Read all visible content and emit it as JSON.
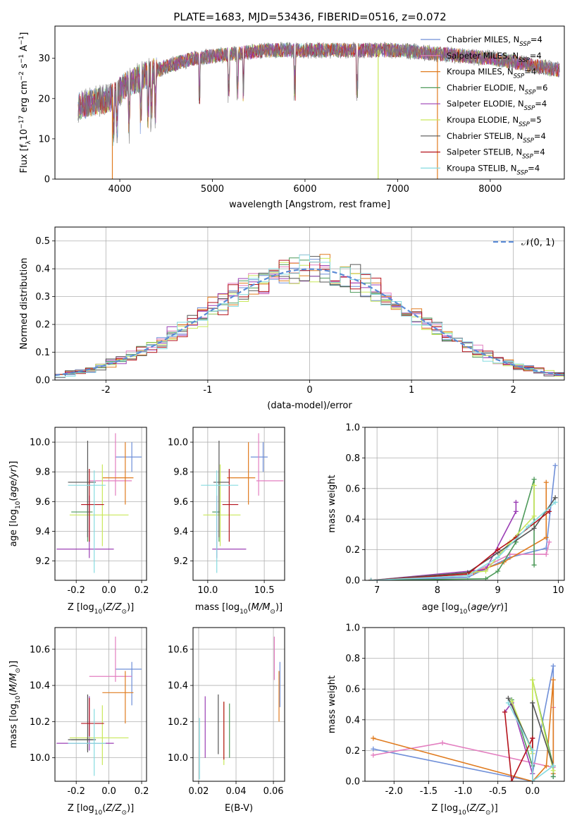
{
  "title": "PLATE=1683, MJD=53436, FIBERID=0516, z=0.072",
  "colors": {
    "chabrier_miles": "#6f8fd8",
    "salpeter_miles": "#e37fc0",
    "kroupa_miles": "#e07b1f",
    "chabrier_elodie": "#4e9a5a",
    "salpeter_elodie": "#9b3fb5",
    "kroupa_elodie": "#c9e85a",
    "chabrier_stelib": "#555555",
    "salpeter_stelib": "#b5121b",
    "kroupa_stelib": "#86dbe0",
    "normal_curve": "#5b8bd6"
  },
  "models": [
    {
      "name": "Chabrier MILES",
      "nssp": "4",
      "color": "#6f8fd8"
    },
    {
      "name": "Salpeter MILES",
      "nssp": "4",
      "color": "#e37fc0"
    },
    {
      "name": "Kroupa MILES",
      "nssp": "4",
      "color": "#e07b1f"
    },
    {
      "name": "Chabrier ELODIE",
      "nssp": "6",
      "color": "#4e9a5a"
    },
    {
      "name": "Salpeter ELODIE",
      "nssp": "4",
      "color": "#9b3fb5"
    },
    {
      "name": "Kroupa ELODIE",
      "nssp": "5",
      "color": "#c9e85a"
    },
    {
      "name": "Chabrier STELIB",
      "nssp": "4",
      "color": "#555555"
    },
    {
      "name": "Salpeter STELIB",
      "nssp": "4",
      "color": "#b5121b"
    },
    {
      "name": "Kroupa STELIB",
      "nssp": "4",
      "color": "#86dbe0"
    }
  ],
  "chart_data": [
    {
      "id": "spectrum",
      "type": "line",
      "xlabel": "wavelength [Angstrom, rest frame]",
      "ylabel": "Flux [f_λ10^-17 erg cm^-2 s^-1 A^-1]",
      "xlim": [
        3300,
        8800
      ],
      "ylim": [
        0,
        38
      ],
      "xticks": [
        4000,
        5000,
        6000,
        7000,
        8000
      ],
      "yticks": [
        0,
        10,
        20,
        30
      ],
      "continuum": [
        [
          3550,
          18
        ],
        [
          3700,
          19
        ],
        [
          3900,
          20
        ],
        [
          4000,
          22
        ],
        [
          4100,
          24
        ],
        [
          4300,
          26
        ],
        [
          4500,
          28
        ],
        [
          4800,
          30
        ],
        [
          5200,
          31
        ],
        [
          5600,
          32
        ],
        [
          6000,
          32
        ],
        [
          6500,
          32
        ],
        [
          7000,
          32
        ],
        [
          7500,
          31
        ],
        [
          8000,
          30
        ],
        [
          8400,
          28.5
        ],
        [
          8750,
          27
        ]
      ],
      "drop_lines": [
        3920,
        6790,
        7430
      ],
      "legend": "upper right"
    },
    {
      "id": "residuals",
      "type": "histogram",
      "xlabel": "(data-model)/error",
      "ylabel": "Normed distribution",
      "xlim": [
        -2.5,
        2.5
      ],
      "ylim": [
        0,
        0.55
      ],
      "xticks": [
        -2,
        -1,
        0,
        1,
        2
      ],
      "yticks": [
        0.0,
        0.1,
        0.2,
        0.3,
        0.4,
        0.5
      ],
      "bin_width": 0.1,
      "reference_label": "𝒩(0, 1)",
      "grid": true
    },
    {
      "id": "age_vs_Z",
      "type": "errorbar",
      "xlabel": "Z [log10(Z/Z⊙)]",
      "ylabel": "age  [log10(age/yr)]",
      "xlim": [
        -0.33,
        0.23
      ],
      "ylim": [
        9.07,
        10.1
      ],
      "xticks": [
        -0.2,
        0.0,
        0.2
      ],
      "yticks": [
        9.2,
        9.4,
        9.6,
        9.8,
        10.0
      ],
      "points": [
        {
          "x": 0.14,
          "xerr": [
            0.1,
            0.06
          ],
          "y": 9.9,
          "yerr": [
            0.1,
            0.1
          ],
          "model": 0
        },
        {
          "x": 0.04,
          "xerr": [
            0.16,
            0.1
          ],
          "y": 9.74,
          "yerr": [
            0.1,
            0.32
          ],
          "model": 1
        },
        {
          "x": 0.1,
          "xerr": [
            0.14,
            0.05
          ],
          "y": 9.76,
          "yerr": [
            0.18,
            0.24
          ],
          "model": 2
        },
        {
          "x": -0.13,
          "xerr": [
            0.1,
            0.03
          ],
          "y": 9.53,
          "yerr": [
            0.2,
            0.28
          ],
          "model": 3
        },
        {
          "x": -0.12,
          "xerr": [
            0.2,
            0.15
          ],
          "y": 9.28,
          "yerr": [
            0.06,
            0.36
          ],
          "model": 4
        },
        {
          "x": -0.04,
          "xerr": [
            0.2,
            0.16
          ],
          "y": 9.51,
          "yerr": [
            0.21,
            0.34
          ],
          "model": 5
        },
        {
          "x": -0.13,
          "xerr": [
            0.12,
            0.05
          ],
          "y": 9.73,
          "yerr": [
            0.37,
            0.28
          ],
          "model": 6
        },
        {
          "x": -0.12,
          "xerr": [
            0.05,
            0.09
          ],
          "y": 9.58,
          "yerr": [
            0.25,
            0.24
          ],
          "model": 7
        },
        {
          "x": -0.09,
          "xerr": [
            0.16,
            0.07
          ],
          "y": 9.71,
          "yerr": [
            0.59,
            0.1
          ],
          "model": 8
        }
      ]
    },
    {
      "id": "age_vs_mass",
      "type": "errorbar",
      "xlabel": "mass [log10(M/M⊙)]",
      "ylabel": "",
      "xlim": [
        9.87,
        10.68
      ],
      "ylim": [
        9.07,
        10.1
      ],
      "xticks": [
        10.0,
        10.5
      ],
      "yticks": [
        9.2,
        9.4,
        9.6,
        9.8,
        10.0
      ],
      "points": [
        {
          "x": 10.49,
          "xerr": [
            0.11,
            0.04
          ],
          "y": 9.9,
          "yerr": [
            0.1,
            0.1
          ],
          "model": 0
        },
        {
          "x": 10.45,
          "xerr": [
            0.02,
            0.22
          ],
          "y": 9.74,
          "yerr": [
            0.1,
            0.32
          ],
          "model": 1
        },
        {
          "x": 10.36,
          "xerr": [
            0.19,
            0.06
          ],
          "y": 9.76,
          "yerr": [
            0.18,
            0.24
          ],
          "model": 2
        },
        {
          "x": 10.1,
          "xerr": [
            0.06,
            0.01
          ],
          "y": 9.53,
          "yerr": [
            0.2,
            0.28
          ],
          "model": 3
        },
        {
          "x": 10.08,
          "xerr": [
            0.04,
            0.26
          ],
          "y": 9.28,
          "yerr": [
            0.06,
            0.36
          ],
          "model": 4
        },
        {
          "x": 10.11,
          "xerr": [
            0.15,
            0.18
          ],
          "y": 9.51,
          "yerr": [
            0.21,
            0.34
          ],
          "model": 5
        },
        {
          "x": 10.1,
          "xerr": [
            0.05,
            0.09
          ],
          "y": 9.73,
          "yerr": [
            0.37,
            0.28
          ],
          "model": 6
        },
        {
          "x": 10.19,
          "xerr": [
            0.06,
            0.08
          ],
          "y": 9.58,
          "yerr": [
            0.25,
            0.24
          ],
          "model": 7
        },
        {
          "x": 10.08,
          "xerr": [
            0.14,
            0.19
          ],
          "y": 9.71,
          "yerr": [
            0.59,
            0.1
          ],
          "model": 8
        }
      ]
    },
    {
      "id": "weight_vs_age",
      "type": "line",
      "xlabel": "age  [log10(age/yr)]",
      "ylabel": "mass weight",
      "xlim": [
        6.8,
        10.1
      ],
      "ylim": [
        0,
        1
      ],
      "xticks": [
        7,
        8,
        9,
        10
      ],
      "yticks": [
        0.0,
        0.2,
        0.4,
        0.6,
        0.8,
        1.0
      ],
      "series": [
        {
          "model": 0,
          "x": [
            6.9,
            8.5,
            9.2,
            9.8,
            9.95
          ],
          "y": [
            0.0,
            0.02,
            0.15,
            0.21,
            0.75
          ]
        },
        {
          "model": 1,
          "x": [
            6.9,
            8.5,
            9.2,
            9.8,
            9.85
          ],
          "y": [
            0.0,
            0.03,
            0.17,
            0.17,
            0.25
          ]
        },
        {
          "model": 2,
          "x": [
            6.9,
            8.6,
            9.1,
            9.8,
            9.8
          ],
          "y": [
            0.0,
            0.05,
            0.12,
            0.28,
            0.64
          ]
        },
        {
          "model": 3,
          "x": [
            6.9,
            8.8,
            9.0,
            9.3,
            9.6,
            9.6
          ],
          "y": [
            0.0,
            0.01,
            0.06,
            0.25,
            0.66,
            0.1
          ]
        },
        {
          "model": 4,
          "x": [
            6.9,
            8.8,
            9.3,
            9.3
          ],
          "y": [
            0.0,
            0.07,
            0.45,
            0.51
          ]
        },
        {
          "model": 5,
          "x": [
            6.9,
            8.8,
            9.2,
            9.6,
            9.6
          ],
          "y": [
            0.0,
            0.06,
            0.25,
            0.42,
            0.62
          ]
        },
        {
          "model": 6,
          "x": [
            6.9,
            8.5,
            9.0,
            9.6,
            9.95
          ],
          "y": [
            0.0,
            0.05,
            0.18,
            0.34,
            0.54
          ]
        },
        {
          "model": 7,
          "x": [
            6.9,
            8.5,
            9.0,
            9.3,
            9.85
          ],
          "y": [
            0.0,
            0.04,
            0.2,
            0.28,
            0.45
          ]
        },
        {
          "model": 8,
          "x": [
            6.9,
            8.5,
            9.0,
            9.5,
            9.95
          ],
          "y": [
            0.0,
            0.03,
            0.15,
            0.35,
            0.51
          ]
        }
      ]
    },
    {
      "id": "mass_vs_Z",
      "type": "errorbar",
      "xlabel": "Z [log10(Z/Z⊙)]",
      "ylabel": "mass [log10(M/M⊙)]",
      "xlim": [
        -0.33,
        0.23
      ],
      "ylim": [
        9.87,
        10.72
      ],
      "xticks": [
        -0.2,
        0.0,
        0.2
      ],
      "yticks": [
        10.0,
        10.2,
        10.4,
        10.6
      ],
      "points": [
        {
          "x": 0.14,
          "xerr": [
            0.1,
            0.06
          ],
          "y": 10.49,
          "yerr": [
            0.2,
            0.04
          ],
          "model": 0
        },
        {
          "x": 0.04,
          "xerr": [
            0.16,
            0.1
          ],
          "y": 10.45,
          "yerr": [
            0.03,
            0.22
          ],
          "model": 1
        },
        {
          "x": 0.1,
          "xerr": [
            0.14,
            0.05
          ],
          "y": 10.36,
          "yerr": [
            0.17,
            0.12
          ],
          "model": 2
        },
        {
          "x": -0.13,
          "xerr": [
            0.1,
            0.03
          ],
          "y": 10.1,
          "yerr": [
            0.06,
            0.01
          ],
          "model": 3
        },
        {
          "x": -0.12,
          "xerr": [
            0.2,
            0.15
          ],
          "y": 10.08,
          "yerr": [
            0.04,
            0.26
          ],
          "model": 4
        },
        {
          "x": -0.04,
          "xerr": [
            0.2,
            0.16
          ],
          "y": 10.11,
          "yerr": [
            0.15,
            0.18
          ],
          "model": 5
        },
        {
          "x": -0.13,
          "xerr": [
            0.12,
            0.05
          ],
          "y": 10.1,
          "yerr": [
            0.07,
            0.25
          ],
          "model": 6
        },
        {
          "x": -0.12,
          "xerr": [
            0.05,
            0.09
          ],
          "y": 10.19,
          "yerr": [
            0.07,
            0.14
          ],
          "model": 7
        },
        {
          "x": -0.09,
          "xerr": [
            0.16,
            0.07
          ],
          "y": 10.08,
          "yerr": [
            0.18,
            0.19
          ],
          "model": 8
        }
      ]
    },
    {
      "id": "mass_vs_ebv",
      "type": "errorbar",
      "xlabel": "E(B-V)",
      "ylabel": "",
      "xlim": [
        0.017,
        0.066
      ],
      "ylim": [
        9.87,
        10.72
      ],
      "xticks": [
        0.02,
        0.04,
        0.06
      ],
      "yticks": [
        10.0,
        10.2,
        10.4,
        10.6
      ],
      "points": [
        {
          "x": 0.0635,
          "y": 10.49,
          "yerr": [
            0.21,
            0.04
          ],
          "model": 0
        },
        {
          "x": 0.0605,
          "y": 10.55,
          "yerr": [
            0.12,
            0.12
          ],
          "model": 1
        },
        {
          "x": 0.063,
          "y": 10.34,
          "yerr": [
            0.14,
            0.14
          ],
          "model": 2
        },
        {
          "x": 0.0365,
          "y": 10.15,
          "yerr": [
            0.15,
            0.15
          ],
          "model": 3
        },
        {
          "x": 0.0235,
          "y": 10.17,
          "yerr": [
            0.17,
            0.17
          ],
          "model": 4
        },
        {
          "x": 0.0335,
          "y": 10.13,
          "yerr": [
            0.17,
            0.18
          ],
          "model": 5
        },
        {
          "x": 0.0305,
          "y": 10.18,
          "yerr": [
            0.16,
            0.17
          ],
          "model": 6
        },
        {
          "x": 0.0335,
          "y": 10.15,
          "yerr": [
            0.16,
            0.16
          ],
          "model": 7
        },
        {
          "x": 0.0205,
          "y": 10.05,
          "yerr": [
            0.17,
            0.17
          ],
          "model": 8
        }
      ]
    },
    {
      "id": "weight_vs_Z",
      "type": "line",
      "xlabel": "Z [log10(Z/Z⊙)]",
      "ylabel": "mass weight",
      "xlim": [
        -2.42,
        0.46
      ],
      "ylim": [
        0,
        1
      ],
      "xticks": [
        -2.0,
        -1.5,
        -1.0,
        -0.5,
        0.0
      ],
      "yticks": [
        0.0,
        0.2,
        0.4,
        0.6,
        0.8,
        1.0
      ],
      "series": [
        {
          "model": 0,
          "x": [
            -2.3,
            0.0,
            0.0,
            0.3,
            0.3
          ],
          "y": [
            0.21,
            0.0,
            0.05,
            0.75,
            0.03
          ]
        },
        {
          "model": 1,
          "x": [
            -2.3,
            -1.3,
            0.3,
            0.3
          ],
          "y": [
            0.17,
            0.25,
            0.09,
            0.48
          ]
        },
        {
          "model": 2,
          "x": [
            -2.3,
            0.0,
            0.2,
            0.3,
            0.3
          ],
          "y": [
            0.28,
            0.0,
            0.1,
            0.66,
            0.05
          ]
        },
        {
          "model": 3,
          "x": [
            -0.3,
            0.0,
            0.0,
            0.3,
            0.3
          ],
          "y": [
            0.53,
            0.1,
            0.66,
            0.1,
            0.03
          ]
        },
        {
          "model": 4,
          "x": [
            -0.4,
            -0.3,
            0.0,
            0.0,
            0.0
          ],
          "y": [
            0.45,
            0.51,
            0.05,
            0.28,
            0.0
          ]
        },
        {
          "model": 5,
          "x": [
            -0.3,
            0.0,
            0.0,
            0.3
          ],
          "y": [
            0.52,
            0.18,
            0.66,
            0.07
          ]
        },
        {
          "model": 6,
          "x": [
            -0.35,
            0.0,
            0.0,
            0.3
          ],
          "y": [
            0.54,
            0.2,
            0.51,
            0.1
          ]
        },
        {
          "model": 7,
          "x": [
            -0.4,
            -0.3,
            0.0,
            0.0
          ],
          "y": [
            0.45,
            0.0,
            0.28,
            0.0
          ]
        },
        {
          "model": 8,
          "x": [
            -0.35,
            0.0,
            0.0,
            0.3
          ],
          "y": [
            0.51,
            0.2,
            0.0,
            0.1
          ]
        }
      ]
    }
  ]
}
